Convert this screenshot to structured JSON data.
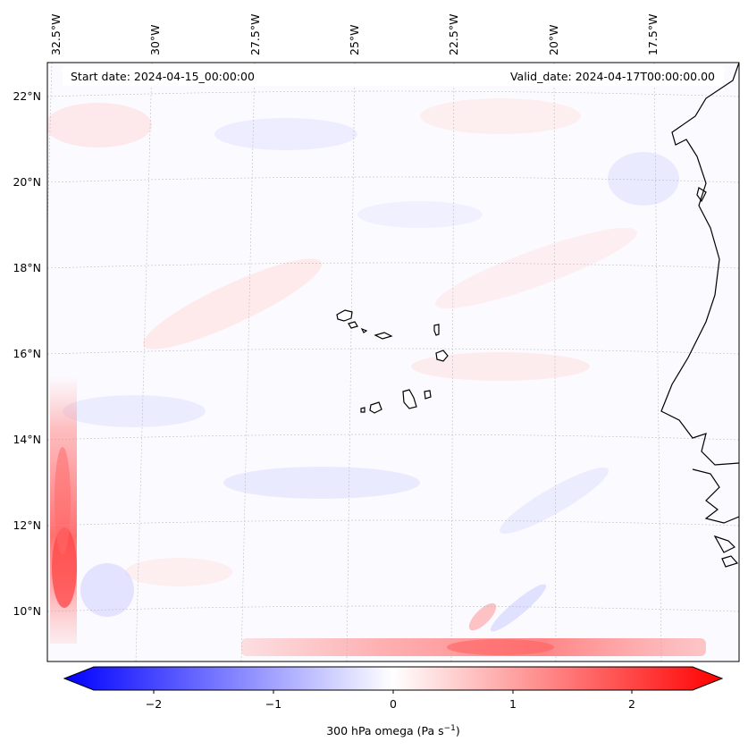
{
  "header": {
    "start_date": "Start date: 2024-04-15_00:00:00",
    "valid_date": "Valid_date: 2024-04-17T00:00:00.00"
  },
  "lon_labels": [
    "32.5°W",
    "30°W",
    "27.5°W",
    "25°W",
    "22.5°W",
    "20°W",
    "17.5°W"
  ],
  "lat_labels": [
    "22°N",
    "20°N",
    "18°N",
    "16°N",
    "14°N",
    "12°N",
    "10°N"
  ],
  "colorbar": {
    "label": "300 hPa omega (Pa s",
    "label_superscript": "−1",
    "label_close": ")",
    "tick_labels": [
      "−2",
      "−1",
      "0",
      "1",
      "2"
    ],
    "min_color": "#0000ff",
    "mid_color": "#ffffff",
    "max_color": "#ff0000"
  },
  "field": {
    "variable": "300 hPa omega",
    "colormap": "bwr"
  }
}
